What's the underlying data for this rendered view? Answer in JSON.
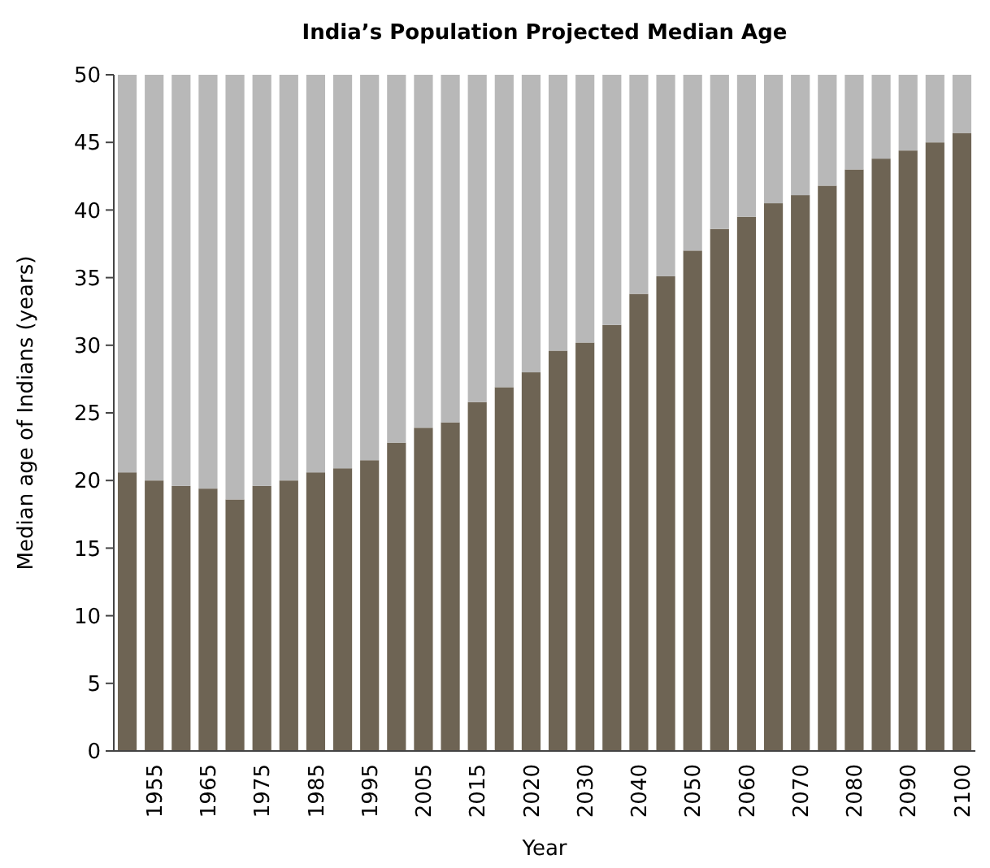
{
  "chart_data": {
    "type": "bar",
    "title": "India’s Population Projected Median Age",
    "xlabel": "Year",
    "ylabel": "Median age of Indians (years)",
    "categories": [
      null,
      "1955",
      null,
      "1965",
      null,
      "1975",
      null,
      "1985",
      null,
      "1995",
      null,
      "2005",
      null,
      "2015",
      null,
      "2020",
      null,
      "2030",
      null,
      "2040",
      null,
      "2050",
      null,
      "2060",
      null,
      "2070",
      null,
      "2080",
      null,
      "2090",
      null,
      "2100"
    ],
    "stacked": true,
    "series": [
      {
        "color": "#6e6454",
        "values": [
          20.6,
          20.0,
          19.6,
          19.4,
          18.6,
          19.6,
          20.0,
          20.6,
          20.9,
          21.5,
          22.8,
          23.9,
          24.3,
          25.8,
          26.9,
          28.0,
          29.6,
          30.2,
          31.5,
          33.8,
          35.1,
          37.0,
          38.6,
          39.5,
          40.5,
          41.1,
          41.8,
          43.0,
          43.8,
          44.4,
          45.0,
          45.7
        ]
      },
      {
        "color": "#b8b8b8",
        "values": [
          29.4,
          30.0,
          30.4,
          30.6,
          31.4,
          30.4,
          30.0,
          29.4,
          29.1,
          28.5,
          27.2,
          26.1,
          25.7,
          24.2,
          23.1,
          22.0,
          20.4,
          19.8,
          18.5,
          16.2,
          14.9,
          13.0,
          11.4,
          10.5,
          9.5,
          8.9,
          8.2,
          7.0,
          6.2,
          5.6,
          5.0,
          4.3
        ]
      }
    ],
    "ylim": [
      0,
      50
    ],
    "yticks": [
      0,
      5,
      10,
      15,
      20,
      25,
      30,
      35,
      40,
      45,
      50
    ]
  }
}
